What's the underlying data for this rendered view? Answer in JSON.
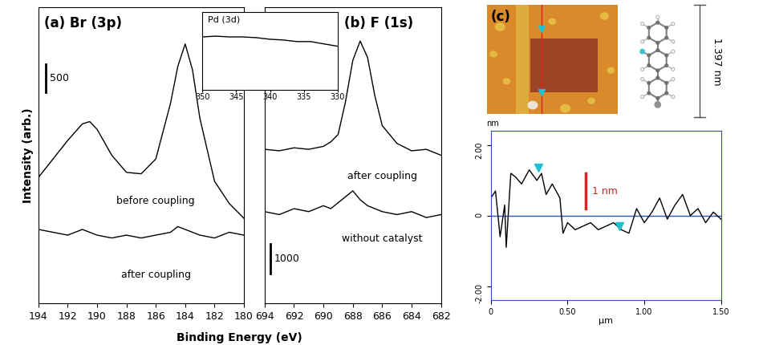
{
  "chart_data": [
    {
      "type": "line",
      "title": "(a) Br (3p)",
      "x_label": "Binding Energy (eV)",
      "y_label": "Intensity (arb.)",
      "xlim": [
        194,
        180
      ],
      "xticks": [
        194,
        192,
        190,
        188,
        186,
        184,
        182,
        180
      ],
      "ylim": [
        0,
        5200
      ],
      "tick_labels": "x",
      "scale_bar": 500,
      "x": [
        194,
        193,
        192,
        191,
        190.5,
        190,
        189,
        188,
        187,
        186,
        185,
        184.5,
        184,
        183.5,
        183,
        182,
        181,
        180
      ],
      "series": [
        {
          "name": "before coupling",
          "color": "#000000",
          "values": [
            2210,
            2535,
            2860,
            3150,
            3190,
            3055,
            2600,
            2300,
            2275,
            2535,
            3510,
            4160,
            4550,
            4095,
            3250,
            2145,
            1755,
            1495
          ]
        },
        {
          "name": "after coupling",
          "color": "#000000",
          "values": [
            1300,
            1250,
            1200,
            1300,
            1250,
            1200,
            1150,
            1200,
            1150,
            1200,
            1250,
            1350,
            1300,
            1250,
            1200,
            1150,
            1250,
            1200
          ]
        }
      ]
    },
    {
      "type": "line",
      "title": "Pd (3d)",
      "xlim": [
        350,
        330
      ],
      "xticks": [
        350,
        345,
        340,
        335,
        330
      ],
      "ylim": [
        0,
        10
      ],
      "tick_labels": "x",
      "x": [
        350,
        348,
        346,
        344,
        342,
        340,
        338,
        336,
        334,
        332,
        330
      ],
      "series": [
        {
          "color": "#000000",
          "values": [
            6.8,
            6.9,
            6.8,
            6.8,
            6.7,
            6.5,
            6.4,
            6.2,
            6.2,
            5.9,
            5.6
          ]
        }
      ]
    },
    {
      "type": "line",
      "title": "(b) F (1s)",
      "xlim": [
        694,
        682
      ],
      "xticks": [
        694,
        692,
        690,
        688,
        686,
        684,
        682
      ],
      "ylim": [
        0,
        10000
      ],
      "tick_labels": "x",
      "scale_bar": 1000,
      "x": [
        694,
        693,
        692,
        691,
        690,
        689.5,
        689,
        688.5,
        688,
        687.5,
        687,
        686.5,
        686,
        685,
        684,
        683,
        682
      ],
      "series": [
        {
          "name": "after coupling",
          "color": "#000000",
          "values": [
            5200,
            5150,
            5250,
            5200,
            5300,
            5450,
            5700,
            6800,
            8200,
            8850,
            8300,
            7000,
            6000,
            5400,
            5150,
            5200,
            5000
          ]
        },
        {
          "name": "without catalyst",
          "color": "#000000",
          "values": [
            3100,
            3000,
            3200,
            3100,
            3300,
            3200,
            3400,
            3600,
            3800,
            3500,
            3300,
            3200,
            3100,
            3000,
            3100,
            2900,
            3000
          ]
        }
      ]
    },
    {
      "type": "line",
      "x_label": "µm",
      "y_label": "nm",
      "xlim": [
        0,
        1.5
      ],
      "xticks": [
        0,
        {
          "value": 0.5,
          "label": "0.50"
        },
        {
          "value": 1,
          "label": "1.00"
        },
        {
          "value": 1.5,
          "label": "1.50"
        }
      ],
      "ylim": [
        -2.4,
        2.4
      ],
      "yticks": [
        {
          "value": -2,
          "label": "-2.00"
        },
        0,
        {
          "value": 2,
          "label": "2.00"
        }
      ],
      "scale_bar": {
        "value": 1,
        "label": "1 nm"
      },
      "cursors": {
        "x": [
          0.31,
          0.84
        ],
        "y": [
          1.35,
          -0.3
        ]
      },
      "x": [
        0,
        0.03,
        0.06,
        0.09,
        0.1,
        0.13,
        0.16,
        0.2,
        0.25,
        0.3,
        0.33,
        0.36,
        0.4,
        0.45,
        0.47,
        0.5,
        0.55,
        0.6,
        0.65,
        0.7,
        0.75,
        0.8,
        0.85,
        0.9,
        0.95,
        1.0,
        1.05,
        1.1,
        1.15,
        1.2,
        1.25,
        1.3,
        1.35,
        1.4,
        1.45,
        1.5
      ],
      "series": [
        {
          "color": "#000000",
          "values": [
            0.5,
            0.7,
            -0.6,
            0.3,
            -0.9,
            1.2,
            1.1,
            0.9,
            1.3,
            1.0,
            1.2,
            0.6,
            0.9,
            0.5,
            -0.5,
            -0.2,
            -0.4,
            -0.3,
            -0.2,
            -0.4,
            -0.3,
            -0.2,
            -0.4,
            -0.5,
            0.2,
            -0.2,
            0.1,
            0.5,
            -0.1,
            0.3,
            0.6,
            0.0,
            0.2,
            -0.2,
            0.1,
            -0.1
          ]
        }
      ]
    }
  ],
  "image": {
    "label": "(c)"
  },
  "molecule": {
    "size_label": "1.397 nm"
  }
}
